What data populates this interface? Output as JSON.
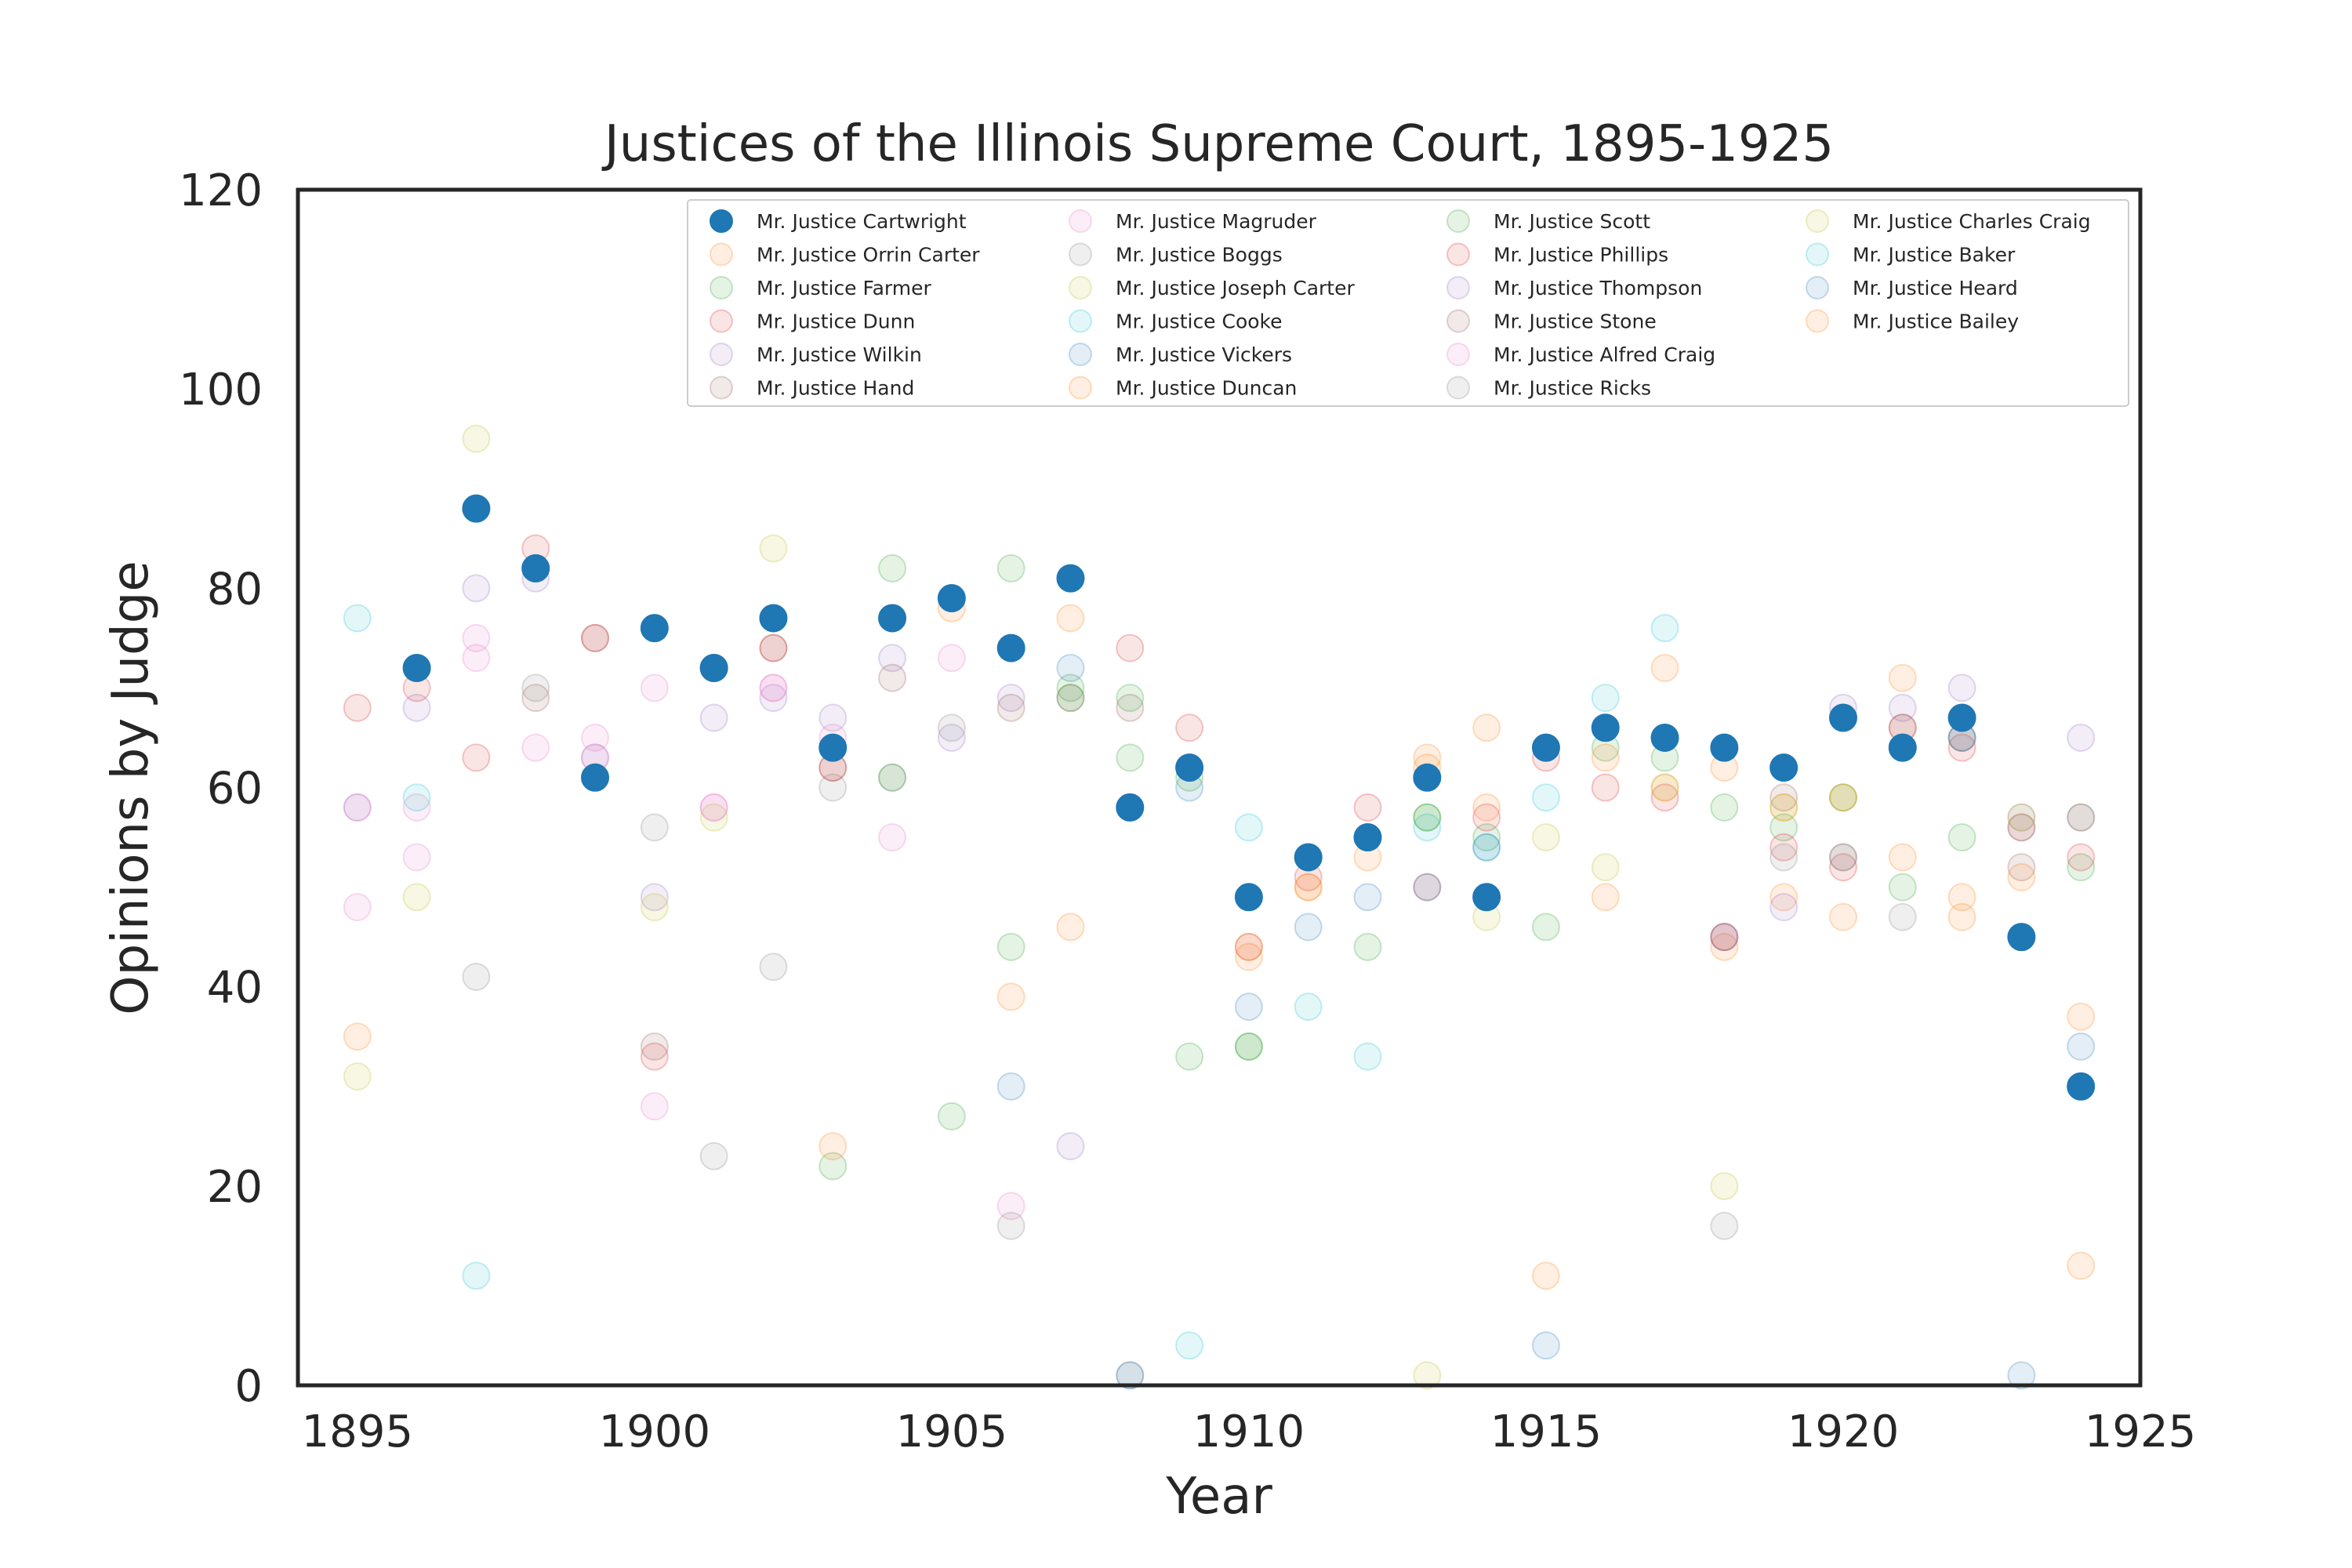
{
  "chart_data": {
    "type": "scatter",
    "title": "Justices of the Illinois Supreme Court, 1895-1925",
    "xlabel": "Year",
    "ylabel": "Opinions by Judge",
    "xlim": [
      1894,
      1925
    ],
    "ylim": [
      0,
      120
    ],
    "xticks": [
      1895,
      1900,
      1905,
      1910,
      1915,
      1920,
      1925
    ],
    "yticks": [
      0,
      20,
      40,
      60,
      80,
      100,
      120
    ],
    "grid": false,
    "legend_position": "top-right",
    "legend_columns": 4,
    "series": [
      {
        "name": "Mr. Justice Cartwright",
        "color": "#1f77b4",
        "highlight": true,
        "points": [
          [
            1896,
            72
          ],
          [
            1897,
            88
          ],
          [
            1898,
            82
          ],
          [
            1899,
            61
          ],
          [
            1900,
            76
          ],
          [
            1901,
            72
          ],
          [
            1902,
            77
          ],
          [
            1903,
            64
          ],
          [
            1904,
            77
          ],
          [
            1905,
            79
          ],
          [
            1906,
            74
          ],
          [
            1907,
            81
          ],
          [
            1908,
            58
          ],
          [
            1909,
            62
          ],
          [
            1910,
            49
          ],
          [
            1911,
            53
          ],
          [
            1912,
            55
          ],
          [
            1913,
            61
          ],
          [
            1914,
            49
          ],
          [
            1915,
            64
          ],
          [
            1916,
            66
          ],
          [
            1917,
            65
          ],
          [
            1918,
            64
          ],
          [
            1919,
            62
          ],
          [
            1920,
            67
          ],
          [
            1921,
            64
          ],
          [
            1922,
            67
          ],
          [
            1923,
            45
          ],
          [
            1924,
            30
          ]
        ]
      },
      {
        "name": "Mr. Justice Orrin Carter",
        "color": "#ff7f0e",
        "points": [
          [
            1906,
            39
          ],
          [
            1907,
            77
          ],
          [
            1910,
            43
          ],
          [
            1911,
            50
          ],
          [
            1913,
            63
          ],
          [
            1914,
            66
          ],
          [
            1916,
            49
          ],
          [
            1917,
            72
          ],
          [
            1918,
            44
          ],
          [
            1919,
            49
          ],
          [
            1920,
            47
          ],
          [
            1921,
            71
          ],
          [
            1922,
            47
          ],
          [
            1923,
            51
          ],
          [
            1924,
            37
          ]
        ]
      },
      {
        "name": "Mr. Justice Farmer",
        "color": "#2ca02c",
        "points": [
          [
            1903,
            22
          ],
          [
            1904,
            82
          ],
          [
            1905,
            27
          ],
          [
            1906,
            44
          ],
          [
            1907,
            70
          ],
          [
            1908,
            63
          ],
          [
            1909,
            33
          ],
          [
            1910,
            34
          ],
          [
            1912,
            44
          ],
          [
            1913,
            57
          ],
          [
            1914,
            55
          ],
          [
            1915,
            46
          ],
          [
            1916,
            64
          ],
          [
            1917,
            63
          ],
          [
            1918,
            58
          ],
          [
            1919,
            56
          ],
          [
            1920,
            59
          ],
          [
            1921,
            50
          ],
          [
            1922,
            55
          ],
          [
            1924,
            52
          ]
        ]
      },
      {
        "name": "Mr. Justice Dunn",
        "color": "#d62728",
        "points": [
          [
            1908,
            74
          ],
          [
            1909,
            66
          ],
          [
            1910,
            44
          ],
          [
            1911,
            51
          ],
          [
            1912,
            58
          ],
          [
            1913,
            50
          ],
          [
            1914,
            57
          ],
          [
            1915,
            63
          ],
          [
            1916,
            60
          ],
          [
            1917,
            59
          ],
          [
            1918,
            45
          ],
          [
            1919,
            54
          ],
          [
            1920,
            52
          ],
          [
            1921,
            66
          ],
          [
            1922,
            64
          ],
          [
            1923,
            56
          ],
          [
            1924,
            53
          ]
        ]
      },
      {
        "name": "Mr. Justice Wilkin",
        "color": "#9467bd",
        "points": [
          [
            1895,
            58
          ],
          [
            1896,
            68
          ],
          [
            1897,
            80
          ],
          [
            1898,
            81
          ],
          [
            1899,
            63
          ],
          [
            1900,
            49
          ],
          [
            1901,
            67
          ],
          [
            1902,
            69
          ],
          [
            1903,
            67
          ],
          [
            1904,
            73
          ],
          [
            1905,
            65
          ],
          [
            1906,
            69
          ],
          [
            1907,
            24
          ]
        ]
      },
      {
        "name": "Mr. Justice Hand",
        "color": "#8c564b",
        "points": [
          [
            1898,
            69
          ],
          [
            1899,
            75
          ],
          [
            1900,
            34
          ],
          [
            1901,
            72
          ],
          [
            1902,
            74
          ],
          [
            1903,
            62
          ],
          [
            1904,
            71
          ],
          [
            1906,
            68
          ],
          [
            1907,
            69
          ],
          [
            1908,
            68
          ]
        ]
      },
      {
        "name": "Mr. Justice Magruder",
        "color": "#e377c2",
        "points": [
          [
            1895,
            48
          ],
          [
            1896,
            53
          ],
          [
            1897,
            73
          ],
          [
            1898,
            64
          ],
          [
            1899,
            65
          ],
          [
            1900,
            28
          ],
          [
            1901,
            58
          ],
          [
            1902,
            70
          ],
          [
            1904,
            55
          ],
          [
            1905,
            73
          ],
          [
            1906,
            18
          ]
        ]
      },
      {
        "name": "Mr. Justice Boggs",
        "color": "#7f7f7f",
        "points": [
          [
            1897,
            41
          ],
          [
            1898,
            70
          ],
          [
            1900,
            56
          ],
          [
            1901,
            23
          ],
          [
            1902,
            42
          ],
          [
            1903,
            60
          ],
          [
            1904,
            61
          ],
          [
            1905,
            66
          ],
          [
            1906,
            16
          ],
          [
            1908,
            1
          ]
        ]
      },
      {
        "name": "Mr. Justice Joseph Carter",
        "color": "#bcbd22",
        "points": [
          [
            1895,
            31
          ],
          [
            1896,
            49
          ],
          [
            1897,
            95
          ],
          [
            1900,
            48
          ],
          [
            1901,
            57
          ],
          [
            1902,
            84
          ]
        ]
      },
      {
        "name": "Mr. Justice Cooke",
        "color": "#17becf",
        "points": [
          [
            1909,
            4
          ],
          [
            1910,
            56
          ],
          [
            1911,
            38
          ],
          [
            1912,
            33
          ],
          [
            1913,
            56
          ],
          [
            1914,
            54
          ],
          [
            1915,
            59
          ],
          [
            1916,
            69
          ],
          [
            1917,
            76
          ]
        ]
      },
      {
        "name": "Mr. Justice Vickers",
        "color": "#1f77b4",
        "points": [
          [
            1906,
            30
          ],
          [
            1907,
            72
          ],
          [
            1908,
            1
          ],
          [
            1909,
            60
          ],
          [
            1910,
            38
          ],
          [
            1911,
            46
          ],
          [
            1912,
            49
          ],
          [
            1913,
            50
          ],
          [
            1914,
            54
          ],
          [
            1915,
            4
          ]
        ]
      },
      {
        "name": "Mr. Justice Duncan",
        "color": "#ff7f0e",
        "points": [
          [
            1905,
            78
          ],
          [
            1907,
            46
          ],
          [
            1910,
            44
          ],
          [
            1911,
            50
          ],
          [
            1912,
            53
          ],
          [
            1913,
            62
          ],
          [
            1914,
            58
          ],
          [
            1915,
            11
          ],
          [
            1916,
            63
          ],
          [
            1917,
            60
          ],
          [
            1918,
            62
          ],
          [
            1919,
            58
          ],
          [
            1920,
            59
          ],
          [
            1921,
            53
          ],
          [
            1922,
            49
          ],
          [
            1923,
            45
          ],
          [
            1924,
            12
          ]
        ]
      },
      {
        "name": "Mr. Justice Scott",
        "color": "#2ca02c",
        "points": [
          [
            1901,
            72
          ],
          [
            1904,
            61
          ],
          [
            1906,
            82
          ],
          [
            1907,
            69
          ],
          [
            1908,
            69
          ],
          [
            1909,
            61
          ],
          [
            1910,
            34
          ],
          [
            1911,
            53
          ],
          [
            1912,
            55
          ],
          [
            1913,
            57
          ]
        ]
      },
      {
        "name": "Mr. Justice Phillips",
        "color": "#d62728",
        "points": [
          [
            1895,
            68
          ],
          [
            1896,
            70
          ],
          [
            1897,
            63
          ],
          [
            1898,
            84
          ],
          [
            1899,
            75
          ],
          [
            1900,
            33
          ],
          [
            1901,
            72
          ],
          [
            1902,
            74
          ],
          [
            1903,
            62
          ]
        ]
      },
      {
        "name": "Mr. Justice Thompson",
        "color": "#9467bd",
        "points": [
          [
            1918,
            45
          ],
          [
            1919,
            48
          ],
          [
            1920,
            68
          ],
          [
            1921,
            68
          ],
          [
            1922,
            70
          ],
          [
            1923,
            57
          ],
          [
            1924,
            65
          ]
        ]
      },
      {
        "name": "Mr. Justice Stone",
        "color": "#8c564b",
        "points": [
          [
            1918,
            45
          ],
          [
            1919,
            59
          ],
          [
            1920,
            53
          ],
          [
            1921,
            66
          ],
          [
            1922,
            65
          ],
          [
            1923,
            52
          ],
          [
            1924,
            57
          ]
        ]
      },
      {
        "name": "Mr. Justice Alfred Craig",
        "color": "#e377c2",
        "points": [
          [
            1895,
            58
          ],
          [
            1896,
            58
          ],
          [
            1897,
            75
          ],
          [
            1898,
            82
          ],
          [
            1899,
            63
          ],
          [
            1900,
            70
          ],
          [
            1901,
            58
          ],
          [
            1902,
            70
          ],
          [
            1903,
            65
          ]
        ]
      },
      {
        "name": "Mr. Justice Ricks",
        "color": "#7f7f7f",
        "points": [
          [
            1918,
            16
          ],
          [
            1919,
            53
          ],
          [
            1920,
            53
          ],
          [
            1921,
            47
          ],
          [
            1922,
            65
          ],
          [
            1923,
            56
          ],
          [
            1924,
            57
          ]
        ]
      },
      {
        "name": "Mr. Justice Charles Craig",
        "color": "#bcbd22",
        "points": [
          [
            1913,
            1
          ],
          [
            1914,
            47
          ],
          [
            1915,
            55
          ],
          [
            1916,
            52
          ],
          [
            1917,
            60
          ],
          [
            1918,
            20
          ],
          [
            1919,
            58
          ],
          [
            1920,
            59
          ],
          [
            1923,
            57
          ]
        ]
      },
      {
        "name": "Mr. Justice Baker",
        "color": "#17becf",
        "points": [
          [
            1895,
            77
          ],
          [
            1896,
            59
          ],
          [
            1897,
            11
          ]
        ]
      },
      {
        "name": "Mr. Justice Heard",
        "color": "#1f77b4",
        "points": [
          [
            1921,
            64
          ],
          [
            1922,
            65
          ],
          [
            1923,
            1
          ],
          [
            1924,
            34
          ]
        ]
      },
      {
        "name": "Mr. Justice Bailey",
        "color": "#ff7f0e",
        "points": [
          [
            1895,
            35
          ],
          [
            1903,
            24
          ]
        ]
      }
    ]
  }
}
